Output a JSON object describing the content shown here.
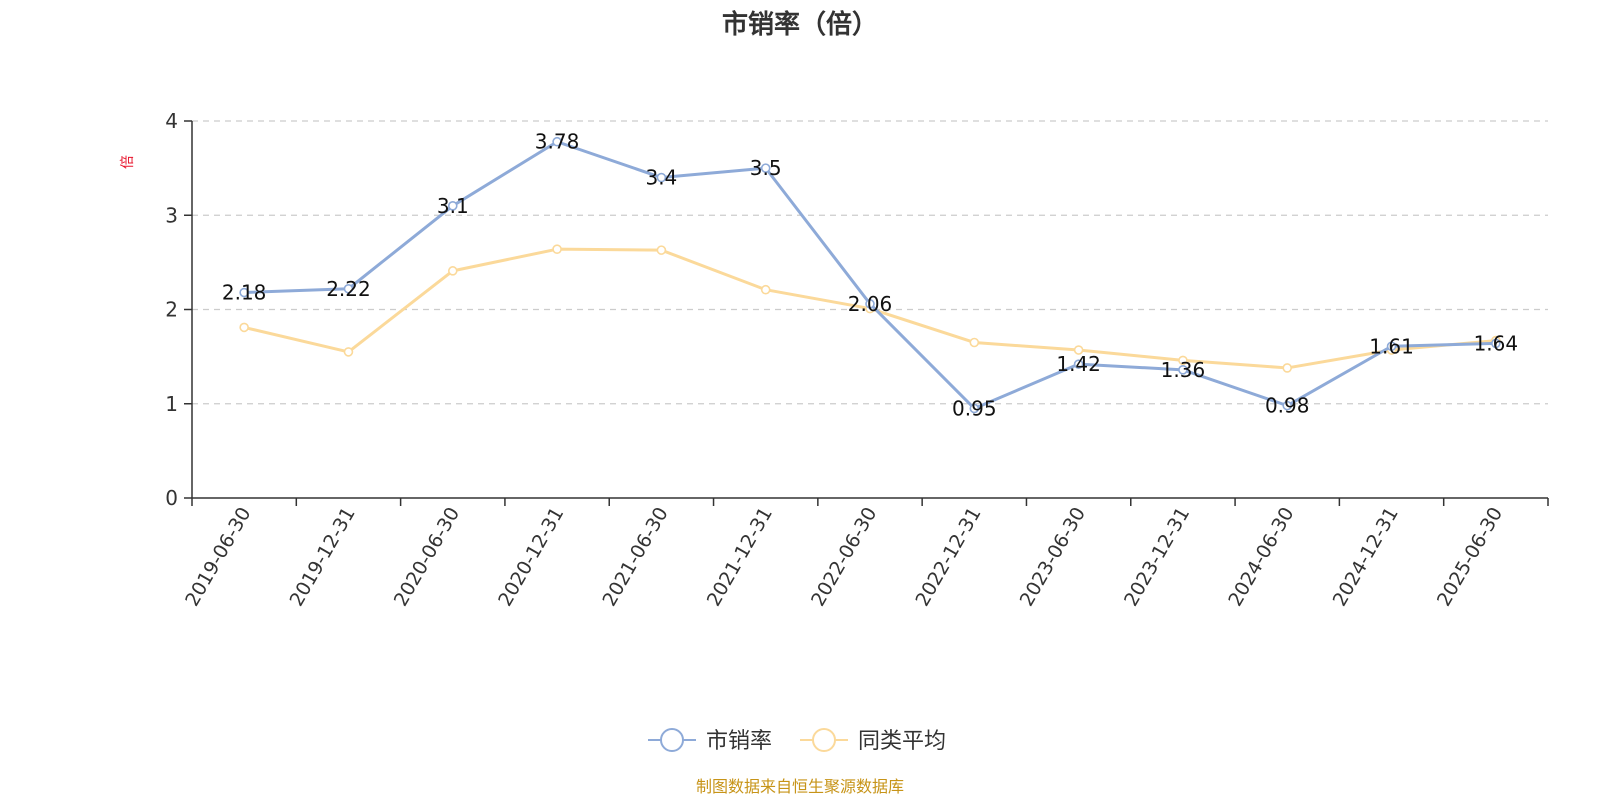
{
  "colors": {
    "series_primary": "#8eaad8",
    "series_avg": "#fbd99a",
    "unit_label": "#e8132b",
    "source_text": "#c79418",
    "axis": "#333333",
    "grid": "#cccccc"
  },
  "chart_data": {
    "type": "line",
    "title": "市销率（倍）",
    "ylabel": "倍",
    "xlabel": "",
    "ylim": [
      0,
      4
    ],
    "yticks": [
      "0",
      "1",
      "2",
      "3",
      "4"
    ],
    "grid": "horizontal-dashed",
    "legend_position": "bottom-center",
    "categories": [
      "2019-06-30",
      "2019-12-31",
      "2020-06-30",
      "2020-12-31",
      "2021-06-30",
      "2021-12-31",
      "2022-06-30",
      "2022-12-31",
      "2023-06-30",
      "2023-12-31",
      "2024-06-30",
      "2024-12-31",
      "2025-06-30"
    ],
    "series": [
      {
        "name": "市销率",
        "values": [
          2.18,
          2.22,
          3.1,
          3.78,
          3.4,
          3.5,
          2.06,
          0.95,
          1.42,
          1.36,
          0.98,
          1.61,
          1.64
        ],
        "labels": [
          "2.18",
          "2.22",
          "3.1",
          "3.78",
          "3.4",
          "3.5",
          "2.06",
          "0.95",
          "1.42",
          "1.36",
          "0.98",
          "1.61",
          "1.64"
        ]
      },
      {
        "name": "同类平均",
        "values": [
          1.81,
          1.55,
          2.41,
          2.64,
          2.63,
          2.21,
          2.01,
          1.65,
          1.57,
          1.46,
          1.38,
          1.57,
          1.67
        ]
      }
    ]
  },
  "footer": {
    "source": "制图数据来自恒生聚源数据库"
  }
}
